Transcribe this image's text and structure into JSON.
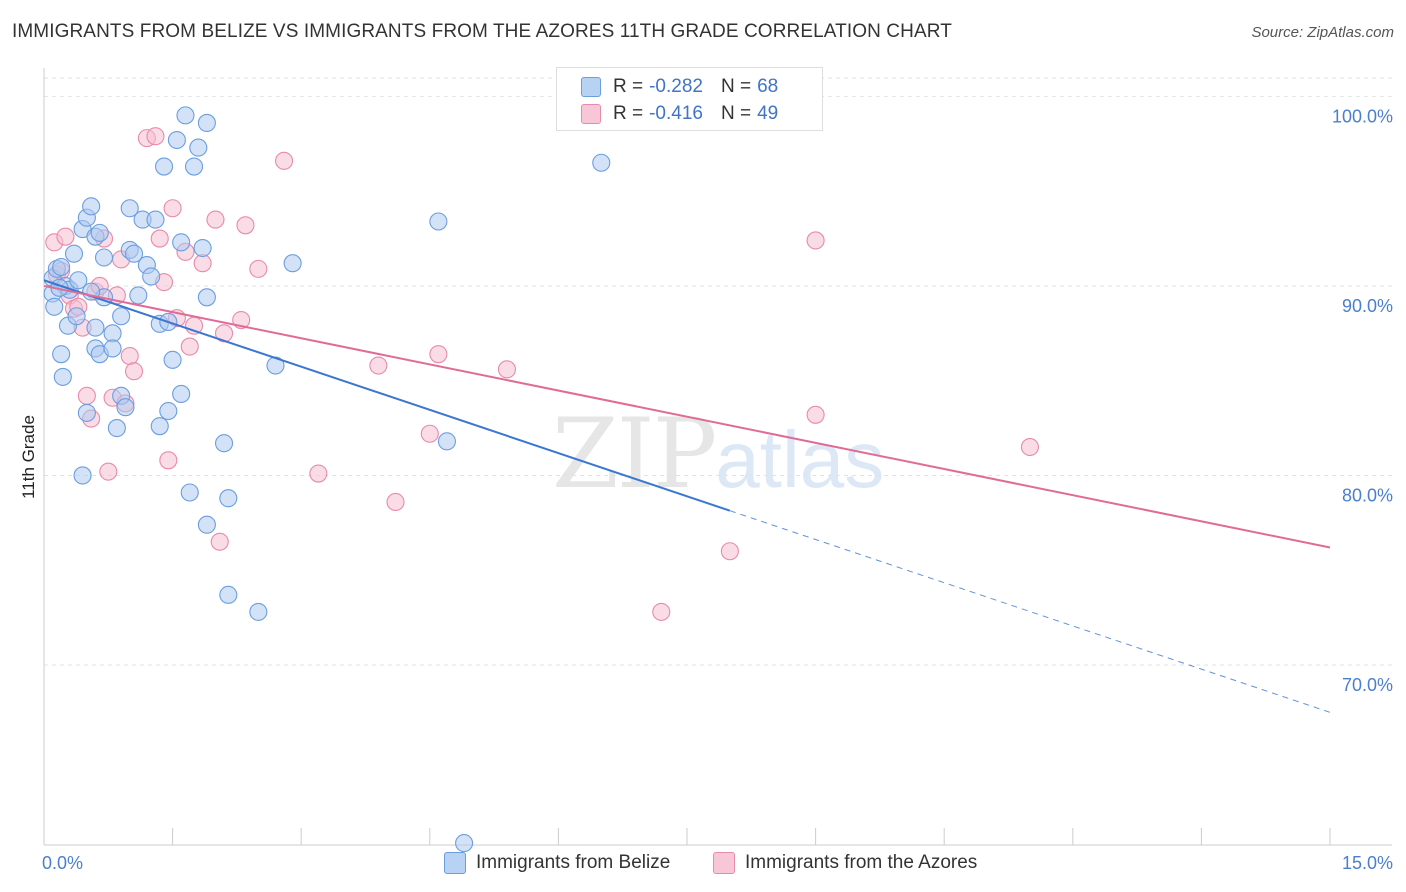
{
  "title": "IMMIGRANTS FROM BELIZE VS IMMIGRANTS FROM THE AZORES 11TH GRADE CORRELATION CHART",
  "source": "Source: ZipAtlas.com",
  "watermark": {
    "zip": "ZIP",
    "atlas": "atlas"
  },
  "legend": {
    "belize": {
      "r_label": "R =",
      "r_value": "-0.282",
      "n_label": "N =",
      "n_value": "68"
    },
    "azores": {
      "r_label": "R =",
      "r_value": "-0.416",
      "n_label": "N =",
      "n_value": "49"
    }
  },
  "bottom_legend": {
    "belize": "Immigrants from Belize",
    "azores": "Immigrants from the Azores"
  },
  "colors": {
    "belize_fill": "#aecbf0",
    "belize_stroke": "#6a9ee0",
    "belize_line": "#3a78d0",
    "azores_fill": "#f6bfd1",
    "azores_stroke": "#e98aab",
    "azores_line": "#e06b96",
    "grid": "#e2e2e2",
    "tick_text": "#4a7fd0"
  },
  "chart_data": {
    "type": "scatter",
    "title": "IMMIGRANTS FROM BELIZE VS IMMIGRANTS FROM THE AZORES 11TH GRADE CORRELATION CHART",
    "xlabel": "",
    "ylabel": "11th Grade",
    "xlim": [
      0,
      15
    ],
    "ylim": [
      60.5,
      101.5
    ],
    "x_tick_labels": [
      {
        "value": 0,
        "label": "0.0%"
      },
      {
        "value": 15,
        "label": "15.0%"
      }
    ],
    "y_tick_labels": [
      {
        "value": 100,
        "label": "100.0%"
      },
      {
        "value": 90,
        "label": "90.0%"
      },
      {
        "value": 80,
        "label": "80.0%"
      },
      {
        "value": 70,
        "label": "70.0%"
      }
    ],
    "series": [
      {
        "name": "Immigrants from Belize",
        "r": -0.282,
        "n": 68,
        "trend": {
          "x_start": 0,
          "y_start": 90.3,
          "x_solid_end": 8.0,
          "x_end": 15.0,
          "y_end": 67.5
        },
        "points": [
          [
            0.1,
            90.4
          ],
          [
            0.15,
            90.9
          ],
          [
            0.2,
            91.0
          ],
          [
            0.25,
            90.0
          ],
          [
            0.1,
            89.6
          ],
          [
            0.12,
            88.9
          ],
          [
            0.3,
            89.8
          ],
          [
            0.2,
            86.4
          ],
          [
            0.22,
            85.2
          ],
          [
            0.35,
            91.7
          ],
          [
            0.4,
            90.3
          ],
          [
            0.45,
            93.0
          ],
          [
            0.5,
            93.6
          ],
          [
            0.55,
            94.2
          ],
          [
            0.6,
            92.6
          ],
          [
            0.65,
            92.8
          ],
          [
            0.7,
            91.5
          ],
          [
            0.7,
            89.4
          ],
          [
            0.6,
            87.8
          ],
          [
            0.6,
            86.7
          ],
          [
            0.65,
            86.4
          ],
          [
            0.8,
            87.5
          ],
          [
            0.8,
            86.7
          ],
          [
            0.9,
            88.4
          ],
          [
            0.9,
            84.2
          ],
          [
            0.85,
            82.5
          ],
          [
            0.5,
            83.3
          ],
          [
            0.45,
            80.0
          ],
          [
            1.0,
            94.1
          ],
          [
            1.0,
            91.9
          ],
          [
            1.05,
            91.7
          ],
          [
            1.1,
            89.5
          ],
          [
            1.15,
            93.5
          ],
          [
            1.3,
            93.5
          ],
          [
            1.2,
            91.1
          ],
          [
            1.35,
            88.0
          ],
          [
            1.4,
            96.3
          ],
          [
            1.55,
            97.7
          ],
          [
            1.65,
            99.0
          ],
          [
            1.75,
            96.3
          ],
          [
            1.8,
            97.3
          ],
          [
            1.9,
            98.6
          ],
          [
            1.6,
            92.3
          ],
          [
            1.85,
            92.0
          ],
          [
            1.5,
            86.1
          ],
          [
            1.6,
            84.3
          ],
          [
            1.45,
            83.4
          ],
          [
            1.35,
            82.6
          ],
          [
            1.9,
            89.4
          ],
          [
            1.7,
            79.1
          ],
          [
            1.9,
            77.4
          ],
          [
            2.1,
            81.7
          ],
          [
            2.15,
            78.8
          ],
          [
            2.15,
            73.7
          ],
          [
            2.5,
            72.8
          ],
          [
            2.7,
            85.8
          ],
          [
            2.9,
            91.2
          ],
          [
            4.6,
            93.4
          ],
          [
            4.7,
            81.8
          ],
          [
            4.9,
            60.6
          ],
          [
            6.5,
            96.5
          ],
          [
            0.18,
            89.9
          ],
          [
            0.28,
            87.9
          ],
          [
            0.38,
            88.4
          ],
          [
            1.25,
            90.5
          ],
          [
            0.95,
            83.6
          ],
          [
            1.45,
            88.1
          ],
          [
            0.55,
            89.7
          ]
        ]
      },
      {
        "name": "Immigrants from the Azores",
        "r": -0.416,
        "n": 49,
        "trend": {
          "x_start": 0,
          "y_start": 90.0,
          "x_end": 15.0,
          "y_end": 76.2
        },
        "points": [
          [
            0.12,
            92.3
          ],
          [
            0.15,
            90.6
          ],
          [
            0.2,
            90.8
          ],
          [
            0.25,
            92.6
          ],
          [
            0.3,
            89.5
          ],
          [
            0.35,
            88.8
          ],
          [
            0.4,
            88.9
          ],
          [
            0.45,
            87.8
          ],
          [
            0.5,
            84.2
          ],
          [
            0.55,
            83.0
          ],
          [
            0.6,
            89.7
          ],
          [
            0.65,
            90.0
          ],
          [
            0.7,
            92.5
          ],
          [
            0.75,
            80.2
          ],
          [
            0.8,
            84.1
          ],
          [
            0.85,
            89.5
          ],
          [
            0.9,
            91.4
          ],
          [
            0.95,
            83.8
          ],
          [
            1.0,
            86.3
          ],
          [
            1.05,
            85.5
          ],
          [
            1.2,
            97.8
          ],
          [
            1.3,
            97.9
          ],
          [
            1.35,
            92.5
          ],
          [
            1.4,
            90.2
          ],
          [
            1.45,
            80.8
          ],
          [
            1.5,
            94.1
          ],
          [
            1.55,
            88.3
          ],
          [
            1.65,
            91.8
          ],
          [
            1.7,
            86.8
          ],
          [
            1.75,
            87.9
          ],
          [
            1.85,
            91.2
          ],
          [
            2.0,
            93.5
          ],
          [
            2.05,
            76.5
          ],
          [
            2.1,
            87.5
          ],
          [
            2.3,
            88.2
          ],
          [
            2.35,
            93.2
          ],
          [
            2.5,
            90.9
          ],
          [
            2.8,
            96.6
          ],
          [
            3.2,
            80.1
          ],
          [
            3.9,
            85.8
          ],
          [
            4.1,
            78.6
          ],
          [
            4.5,
            82.2
          ],
          [
            4.6,
            86.4
          ],
          [
            5.4,
            85.6
          ],
          [
            7.2,
            72.8
          ],
          [
            8.0,
            76.0
          ],
          [
            9.0,
            92.4
          ],
          [
            9.0,
            83.2
          ],
          [
            11.5,
            81.5
          ]
        ]
      }
    ]
  }
}
